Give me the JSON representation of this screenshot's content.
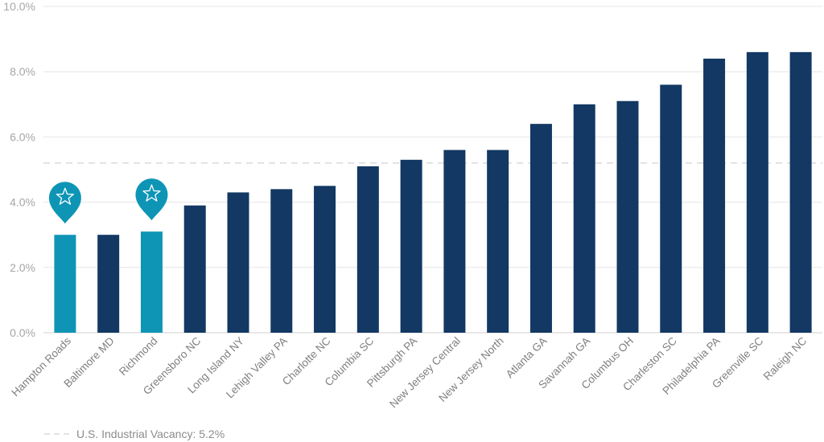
{
  "chart_data": {
    "type": "bar",
    "title": "",
    "xlabel": "",
    "ylabel": "",
    "ylim": [
      0,
      10
    ],
    "yticks": [
      "0.0%",
      "2.0%",
      "4.0%",
      "6.0%",
      "8.0%",
      "10.0%"
    ],
    "ytick_values": [
      0,
      2,
      4,
      6,
      8,
      10
    ],
    "grid": true,
    "categories": [
      "Hampton Roads",
      "Baltimore MD",
      "Richmond",
      "Greensboro NC",
      "Long Island NY",
      "Lehigh Valley PA",
      "Charlotte NC",
      "Columbia SC",
      "Pittsburgh PA",
      "New Jersey Central",
      "New Jersey North",
      "Atlanta GA",
      "Savannah GA",
      "Columbus OH",
      "Charleston SC",
      "Philadelphia PA",
      "Greenville SC",
      "Raleigh NC"
    ],
    "values": [
      3.0,
      3.0,
      3.1,
      3.9,
      4.3,
      4.4,
      4.5,
      5.1,
      5.3,
      5.6,
      5.6,
      6.4,
      7.0,
      7.1,
      7.6,
      8.4,
      8.6,
      8.6
    ],
    "highlighted": [
      "Hampton Roads",
      "Richmond"
    ],
    "highlight_marker_icon": "star-pin-icon",
    "colors": {
      "bar": "#123863",
      "highlight": "#0e95b5",
      "grid": "#e6e6e6",
      "reference_line": "#d9d9d9"
    },
    "reference_line": {
      "value": 5.2,
      "label": "U.S. Industrial Vacancy: 5.2%"
    },
    "legend": {
      "position": "bottom-left"
    }
  }
}
